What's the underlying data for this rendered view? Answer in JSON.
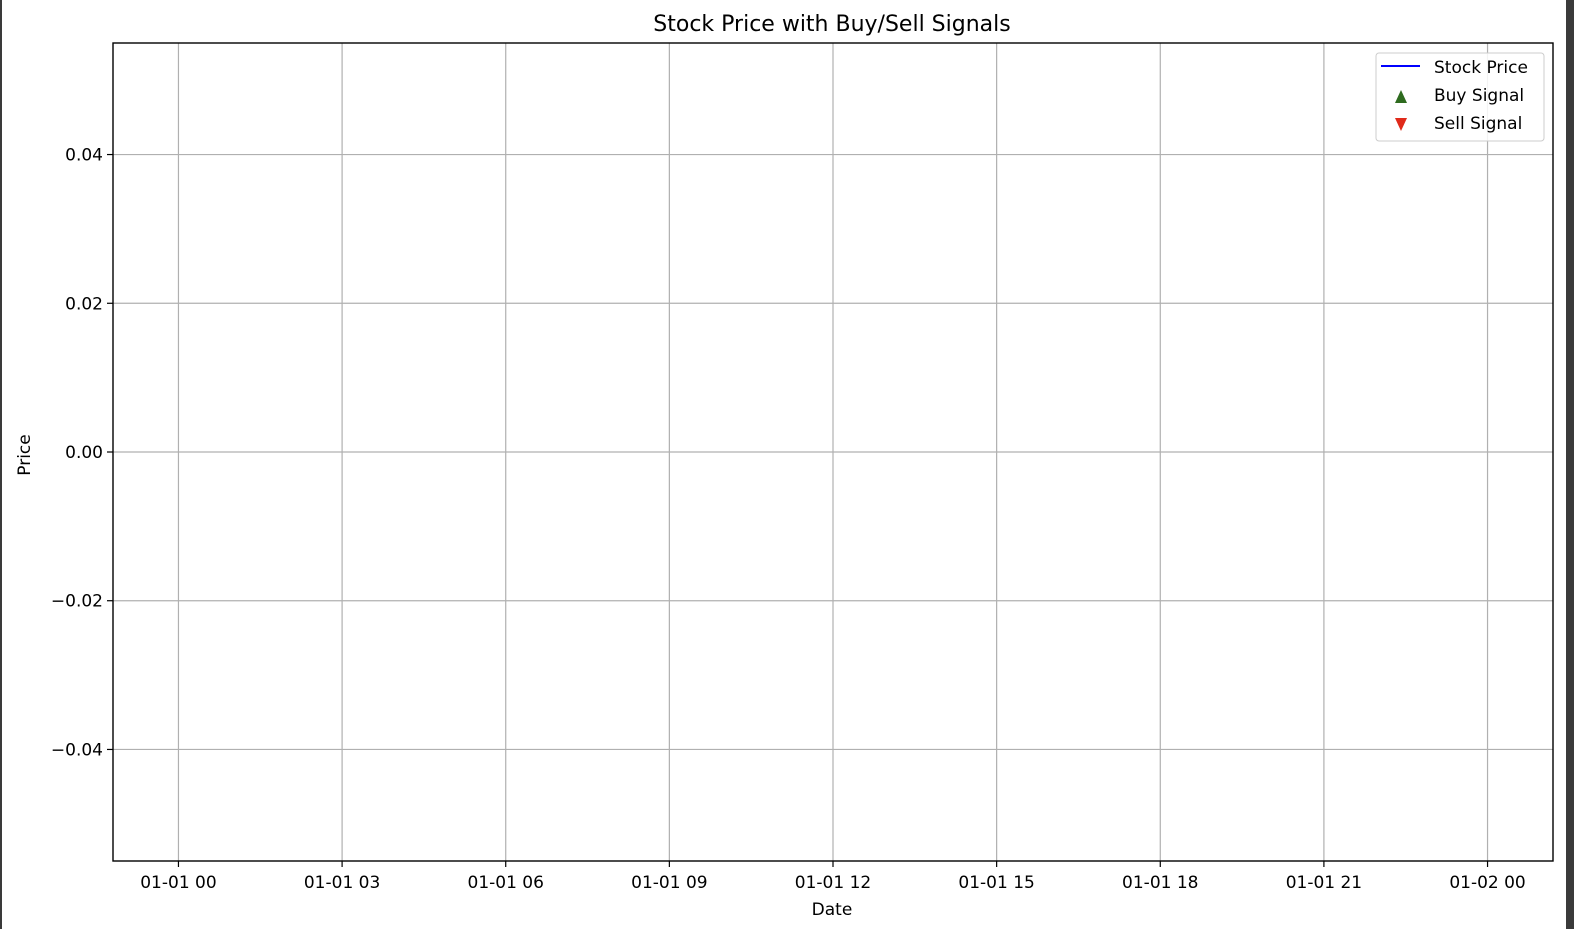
{
  "chart_data": {
    "type": "line",
    "title": "Stock Price with Buy/Sell Signals",
    "xlabel": "Date",
    "ylabel": "Price",
    "x_ticks": [
      "01-01 00",
      "01-01 03",
      "01-01 06",
      "01-01 09",
      "01-01 12",
      "01-01 15",
      "01-01 18",
      "01-01 21",
      "01-02 00"
    ],
    "x_tick_hours": [
      0,
      3,
      6,
      9,
      12,
      15,
      18,
      21,
      24
    ],
    "xlim_hours": [
      -1.2,
      25.2
    ],
    "y_ticks": [
      -0.04,
      -0.02,
      0.0,
      0.02,
      0.04
    ],
    "y_tick_labels": [
      "−0.04",
      "−0.02",
      "0.00",
      "0.02",
      "0.04"
    ],
    "ylim": [
      -0.055,
      0.055
    ],
    "grid": true,
    "legend_position": "top-right",
    "series": [
      {
        "name": "Stock Price",
        "kind": "line",
        "color": "#0000ff",
        "x": [],
        "y": []
      },
      {
        "name": "Buy Signal",
        "kind": "marker",
        "marker": "triangle-up",
        "color": "#2e6b1f",
        "x": [],
        "y": []
      },
      {
        "name": "Sell Signal",
        "kind": "marker",
        "marker": "triangle-down",
        "color": "#e02a1a",
        "x": [],
        "y": []
      }
    ]
  }
}
